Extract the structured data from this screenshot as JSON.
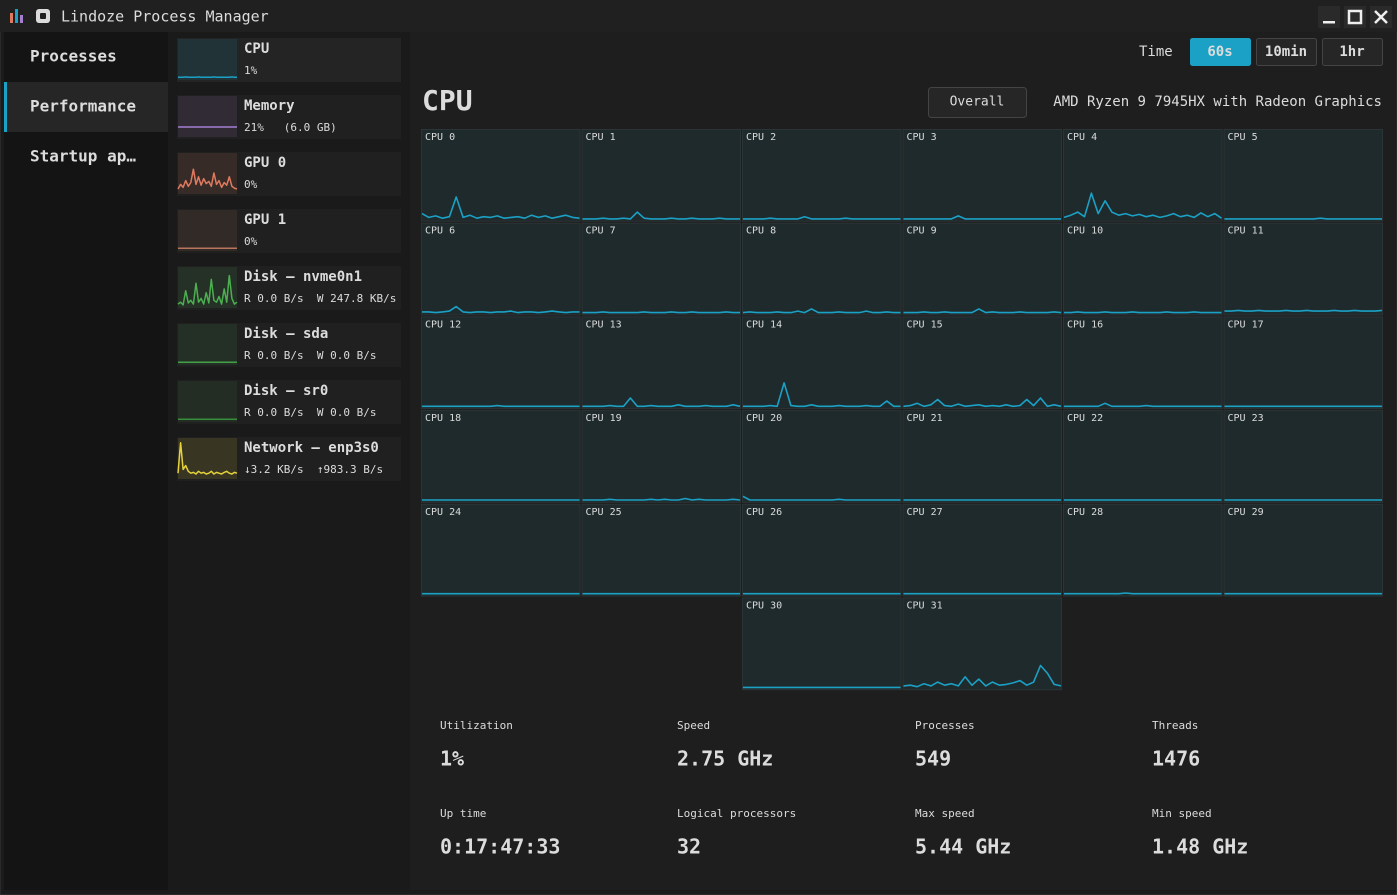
{
  "window": {
    "title": "Lindoze Process Manager"
  },
  "nav": {
    "items": [
      "Processes",
      "Performance",
      "Startup ap…"
    ],
    "active": 1
  },
  "devices": {
    "selected": 0,
    "items": [
      {
        "name": "CPU",
        "detail": "1%",
        "color": "#1ba1c5",
        "history": [
          2,
          2,
          2,
          3,
          2,
          2,
          2,
          2,
          3,
          2,
          2,
          2,
          2,
          2,
          3,
          2,
          2,
          2,
          2,
          2,
          2,
          3,
          2,
          2
        ]
      },
      {
        "name": "Memory",
        "detail": "21%   (6.0 GB)",
        "color": "#a47fd0",
        "history": [
          21,
          21,
          21,
          21,
          21,
          21,
          21,
          21,
          21,
          21,
          21,
          21,
          21,
          21,
          21,
          21,
          21,
          21,
          21,
          21,
          21,
          21,
          21,
          21
        ]
      },
      {
        "name": "GPU 0",
        "detail": "0%",
        "color": "#e07a5f",
        "history": [
          8,
          20,
          12,
          30,
          15,
          25,
          60,
          20,
          40,
          18,
          35,
          22,
          28,
          15,
          50,
          20,
          30,
          12,
          25,
          18,
          40,
          15,
          10,
          8
        ]
      },
      {
        "name": "GPU 1",
        "detail": "0%",
        "color": "#b8765c",
        "history": [
          2,
          2,
          2,
          2,
          2,
          2,
          2,
          2,
          2,
          2,
          2,
          2,
          2,
          2,
          2,
          2,
          2,
          2,
          2,
          2,
          2,
          2,
          2,
          2
        ]
      },
      {
        "name": "Disk – nvme0n1",
        "detail": "R 0.0 B/s  W 247.8 KB/s",
        "color": "#4caf50",
        "history": [
          5,
          10,
          3,
          40,
          8,
          15,
          5,
          60,
          10,
          20,
          5,
          35,
          8,
          70,
          15,
          10,
          25,
          5,
          45,
          10,
          80,
          20,
          5,
          10
        ]
      },
      {
        "name": "Disk – sda",
        "detail": "R 0.0 B/s  W 0.0 B/s",
        "color": "#43a047",
        "history": [
          2,
          2,
          2,
          2,
          2,
          2,
          2,
          2,
          2,
          2,
          2,
          2,
          2,
          2,
          2,
          2,
          2,
          2,
          2,
          2,
          2,
          2,
          2,
          2
        ]
      },
      {
        "name": "Disk – sr0",
        "detail": "R 0.0 B/s  W 0.0 B/s",
        "color": "#388e3c",
        "history": [
          2,
          2,
          2,
          2,
          2,
          2,
          2,
          2,
          2,
          2,
          2,
          2,
          2,
          2,
          2,
          2,
          2,
          2,
          2,
          2,
          2,
          2,
          2,
          2
        ]
      },
      {
        "name": "Network – enp3s0",
        "detail": "↓3.2 KB/s  ↑983.3 B/s",
        "color": "#e6d23c",
        "history": [
          10,
          90,
          20,
          30,
          15,
          10,
          12,
          8,
          15,
          10,
          12,
          8,
          10,
          15,
          8,
          12,
          10,
          8,
          12,
          15,
          10,
          8,
          12,
          10
        ]
      }
    ]
  },
  "time_range": {
    "label": "Time",
    "options": [
      "60s",
      "10min",
      "1hr"
    ],
    "selected": 0
  },
  "heading": "CPU",
  "mode_button": "Overall",
  "model": "AMD Ryzen 9 7945HX with Radeon Graphics",
  "core_color": "#1ba1c5",
  "cores": [
    {
      "label": "CPU 0",
      "history": [
        8,
        3,
        5,
        2,
        4,
        30,
        3,
        6,
        2,
        4,
        3,
        5,
        2,
        3,
        4,
        2,
        6,
        3,
        5,
        2,
        4,
        6,
        3,
        2
      ]
    },
    {
      "label": "CPU 1",
      "history": [
        1,
        1,
        1,
        2,
        1,
        1,
        2,
        1,
        10,
        2,
        1,
        1,
        1,
        2,
        1,
        1,
        2,
        1,
        1,
        1,
        2,
        1,
        1,
        1
      ]
    },
    {
      "label": "CPU 2",
      "history": [
        1,
        1,
        1,
        1,
        2,
        1,
        1,
        1,
        1,
        4,
        1,
        1,
        1,
        1,
        1,
        2,
        1,
        1,
        1,
        1,
        1,
        1,
        1,
        1
      ]
    },
    {
      "label": "CPU 3",
      "history": [
        1,
        1,
        1,
        1,
        1,
        1,
        1,
        1,
        5,
        1,
        1,
        1,
        1,
        1,
        1,
        1,
        1,
        1,
        1,
        1,
        1,
        1,
        1,
        1
      ]
    },
    {
      "label": "CPU 4",
      "history": [
        3,
        6,
        10,
        4,
        35,
        8,
        25,
        10,
        6,
        8,
        5,
        7,
        4,
        6,
        3,
        5,
        8,
        4,
        6,
        3,
        9,
        4,
        8,
        2
      ]
    },
    {
      "label": "CPU 5",
      "history": [
        1,
        1,
        1,
        1,
        1,
        1,
        1,
        1,
        1,
        1,
        1,
        1,
        1,
        1,
        2,
        1,
        1,
        1,
        1,
        1,
        1,
        1,
        1,
        1
      ]
    },
    {
      "label": "CPU 6",
      "history": [
        2,
        2,
        1,
        2,
        3,
        9,
        2,
        1,
        2,
        2,
        1,
        2,
        2,
        3,
        1,
        2,
        2,
        1,
        2,
        3,
        2,
        1,
        2,
        2
      ]
    },
    {
      "label": "CPU 7",
      "history": [
        1,
        1,
        1,
        2,
        1,
        1,
        1,
        1,
        1,
        2,
        1,
        1,
        1,
        2,
        1,
        1,
        2,
        1,
        1,
        1,
        1,
        2,
        1,
        1
      ]
    },
    {
      "label": "CPU 8",
      "history": [
        1,
        2,
        1,
        1,
        1,
        2,
        1,
        1,
        3,
        1,
        6,
        1,
        1,
        1,
        2,
        1,
        1,
        1,
        3,
        1,
        1,
        2,
        1,
        1
      ]
    },
    {
      "label": "CPU 9",
      "history": [
        1,
        1,
        1,
        2,
        1,
        1,
        2,
        1,
        1,
        1,
        1,
        6,
        1,
        2,
        1,
        1,
        1,
        2,
        1,
        1,
        1,
        1,
        2,
        1
      ]
    },
    {
      "label": "CPU 10",
      "history": [
        1,
        1,
        2,
        1,
        1,
        1,
        2,
        1,
        1,
        1,
        2,
        1,
        1,
        1,
        1,
        2,
        1,
        1,
        1,
        2,
        1,
        1,
        1,
        1
      ]
    },
    {
      "label": "CPU 11",
      "history": [
        3,
        3,
        4,
        3,
        3,
        4,
        3,
        3,
        3,
        4,
        3,
        3,
        4,
        3,
        3,
        3,
        4,
        3,
        3,
        4,
        3,
        3,
        3,
        4
      ]
    },
    {
      "label": "CPU 12",
      "history": [
        1,
        1,
        1,
        1,
        1,
        1,
        1,
        1,
        1,
        1,
        1,
        2,
        1,
        1,
        1,
        1,
        1,
        1,
        1,
        1,
        1,
        1,
        1,
        1
      ]
    },
    {
      "label": "CPU 13",
      "history": [
        1,
        1,
        1,
        1,
        2,
        1,
        1,
        12,
        1,
        1,
        2,
        1,
        1,
        1,
        3,
        1,
        1,
        1,
        2,
        1,
        1,
        1,
        3,
        1
      ]
    },
    {
      "label": "CPU 14",
      "history": [
        1,
        1,
        1,
        1,
        2,
        1,
        32,
        2,
        1,
        1,
        3,
        1,
        1,
        1,
        2,
        1,
        1,
        1,
        2,
        1,
        1,
        8,
        1,
        1
      ]
    },
    {
      "label": "CPU 15",
      "history": [
        1,
        2,
        5,
        1,
        3,
        10,
        2,
        1,
        4,
        1,
        2,
        3,
        1,
        2,
        1,
        3,
        1,
        2,
        10,
        2,
        12,
        1,
        3,
        1
      ]
    },
    {
      "label": "CPU 16",
      "history": [
        1,
        1,
        1,
        1,
        1,
        1,
        5,
        1,
        1,
        1,
        1,
        1,
        2,
        1,
        1,
        1,
        1,
        1,
        1,
        1,
        1,
        1,
        1,
        1
      ]
    },
    {
      "label": "CPU 17",
      "history": [
        1,
        1,
        1,
        1,
        1,
        1,
        1,
        1,
        1,
        1,
        1,
        1,
        1,
        1,
        1,
        1,
        1,
        1,
        1,
        1,
        1,
        1,
        1,
        1
      ]
    },
    {
      "label": "CPU 18",
      "history": [
        1,
        1,
        1,
        1,
        1,
        1,
        1,
        1,
        1,
        1,
        1,
        1,
        1,
        1,
        1,
        1,
        1,
        1,
        1,
        1,
        1,
        1,
        1,
        1
      ]
    },
    {
      "label": "CPU 19",
      "history": [
        1,
        1,
        1,
        1,
        2,
        1,
        1,
        1,
        1,
        1,
        2,
        1,
        2,
        1,
        1,
        3,
        1,
        2,
        1,
        1,
        1,
        1,
        2,
        1
      ]
    },
    {
      "label": "CPU 20",
      "history": [
        6,
        1,
        1,
        1,
        1,
        1,
        1,
        1,
        1,
        1,
        1,
        1,
        1,
        1,
        2,
        1,
        1,
        1,
        1,
        1,
        1,
        1,
        1,
        1
      ]
    },
    {
      "label": "CPU 21",
      "history": [
        1,
        1,
        1,
        1,
        1,
        1,
        1,
        1,
        1,
        1,
        1,
        1,
        1,
        1,
        1,
        1,
        1,
        1,
        1,
        1,
        1,
        1,
        1,
        1
      ]
    },
    {
      "label": "CPU 22",
      "history": [
        1,
        1,
        1,
        1,
        1,
        1,
        1,
        1,
        1,
        1,
        1,
        1,
        1,
        1,
        1,
        1,
        1,
        1,
        1,
        1,
        1,
        1,
        1,
        1
      ]
    },
    {
      "label": "CPU 23",
      "history": [
        1,
        1,
        1,
        1,
        1,
        1,
        1,
        1,
        1,
        1,
        1,
        1,
        1,
        1,
        1,
        1,
        1,
        1,
        1,
        1,
        1,
        1,
        1,
        1
      ]
    },
    {
      "label": "CPU 24",
      "history": [
        1,
        1,
        1,
        1,
        1,
        1,
        1,
        1,
        1,
        1,
        1,
        1,
        1,
        1,
        1,
        1,
        1,
        1,
        1,
        1,
        1,
        1,
        1,
        1
      ]
    },
    {
      "label": "CPU 25",
      "history": [
        1,
        1,
        1,
        1,
        1,
        1,
        1,
        1,
        1,
        1,
        1,
        1,
        1,
        1,
        1,
        1,
        1,
        1,
        1,
        1,
        1,
        1,
        1,
        1
      ]
    },
    {
      "label": "CPU 26",
      "history": [
        1,
        1,
        1,
        1,
        1,
        1,
        1,
        1,
        1,
        1,
        1,
        1,
        1,
        1,
        1,
        1,
        1,
        1,
        1,
        1,
        1,
        1,
        1,
        1
      ]
    },
    {
      "label": "CPU 27",
      "history": [
        1,
        1,
        1,
        1,
        1,
        1,
        1,
        1,
        1,
        1,
        1,
        1,
        1,
        1,
        1,
        1,
        1,
        1,
        1,
        1,
        1,
        1,
        1,
        1
      ]
    },
    {
      "label": "CPU 28",
      "history": [
        1,
        1,
        1,
        1,
        1,
        1,
        1,
        1,
        1,
        2,
        1,
        1,
        1,
        1,
        1,
        1,
        1,
        1,
        1,
        1,
        1,
        1,
        1,
        1
      ]
    },
    {
      "label": "CPU 29",
      "history": [
        1,
        1,
        1,
        1,
        1,
        1,
        1,
        1,
        1,
        1,
        1,
        1,
        1,
        1,
        1,
        1,
        1,
        1,
        1,
        1,
        1,
        1,
        1,
        1
      ]
    },
    {
      "label": "CPU 30",
      "history": [
        1,
        1,
        1,
        1,
        1,
        1,
        1,
        1,
        1,
        1,
        1,
        1,
        1,
        1,
        1,
        1,
        1,
        1,
        1,
        1,
        1,
        1,
        1,
        1
      ]
    },
    {
      "label": "CPU 31",
      "history": [
        3,
        4,
        2,
        6,
        3,
        8,
        4,
        6,
        3,
        15,
        4,
        12,
        3,
        8,
        4,
        5,
        7,
        10,
        4,
        8,
        30,
        20,
        5,
        3
      ]
    }
  ],
  "stats": [
    {
      "label": "Utilization",
      "value": "1%"
    },
    {
      "label": "Speed",
      "value": "2.75 GHz"
    },
    {
      "label": "Processes",
      "value": "549"
    },
    {
      "label": "Threads",
      "value": "1476"
    },
    {
      "label": "Up time",
      "value": "0:17:47:33"
    },
    {
      "label": "Logical processors",
      "value": "32"
    },
    {
      "label": "Max speed",
      "value": "5.44 GHz"
    },
    {
      "label": "Min speed",
      "value": "1.48 GHz"
    }
  ]
}
